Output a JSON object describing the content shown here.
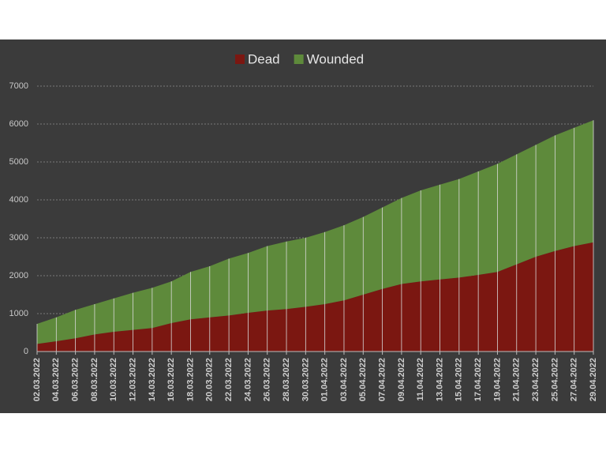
{
  "chart_data": {
    "type": "stacked_area",
    "categories": [
      "02.03.2022",
      "04.03.2022",
      "06.03.2022",
      "08.03.2022",
      "10.03.2022",
      "12.03.2022",
      "14.03.2022",
      "16.03.2022",
      "18.03.2022",
      "20.03.2022",
      "22.03.2022",
      "24.03.2022",
      "26.03.2022",
      "28.03.2022",
      "30.03.2022",
      "01.04.2022",
      "03.04.2022",
      "05.04.2022",
      "07.04.2022",
      "09.04.2022",
      "11.04.2022",
      "13.04.2022",
      "15.04.2022",
      "17.04.2022",
      "19.04.2022",
      "21.04.2022",
      "23.04.2022",
      "25.04.2022",
      "27.04.2022",
      "29.04.2022"
    ],
    "series": [
      {
        "name": "Dead",
        "color": "#7b1711",
        "values": [
          200,
          270,
          350,
          450,
          520,
          570,
          620,
          750,
          850,
          900,
          950,
          1020,
          1080,
          1120,
          1180,
          1250,
          1350,
          1500,
          1650,
          1780,
          1850,
          1900,
          1950,
          2020,
          2100,
          2300,
          2500,
          2650,
          2780,
          2880
        ]
      },
      {
        "name": "Wounded",
        "color": "#5e8a3b",
        "values": [
          530,
          630,
          750,
          800,
          880,
          980,
          1060,
          1100,
          1250,
          1350,
          1500,
          1580,
          1700,
          1780,
          1820,
          1900,
          1980,
          2050,
          2150,
          2270,
          2400,
          2500,
          2600,
          2730,
          2850,
          2900,
          2950,
          3050,
          3120,
          3220
        ]
      }
    ],
    "ylim": [
      0,
      7000
    ],
    "yticks": [
      0,
      1000,
      2000,
      3000,
      4000,
      5000,
      6000,
      7000
    ],
    "grid": true,
    "legend": "top"
  }
}
